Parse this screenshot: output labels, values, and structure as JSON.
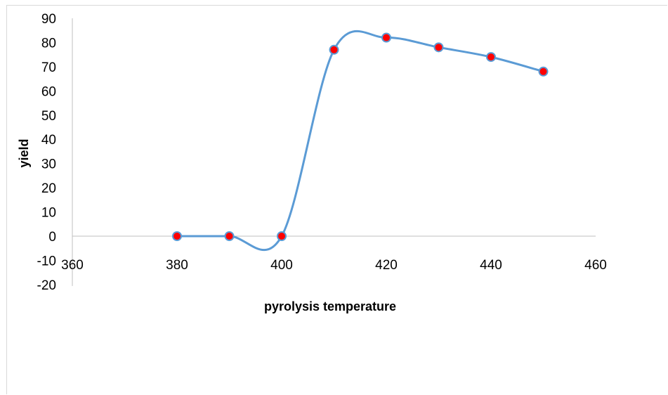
{
  "chart_data": {
    "type": "scatter",
    "title": "",
    "xlabel": "pyrolysis temperature",
    "ylabel": "yield",
    "xlim": [
      360,
      460
    ],
    "ylim": [
      -20,
      90
    ],
    "x_ticks": [
      360,
      380,
      400,
      420,
      440,
      460
    ],
    "y_ticks": [
      -20,
      -10,
      0,
      10,
      20,
      30,
      40,
      50,
      60,
      70,
      80,
      90
    ],
    "grid": false,
    "legend": "none",
    "smooth_line": true,
    "series": [
      {
        "x": [
          380,
          390,
          400,
          410,
          420,
          430,
          440,
          450
        ],
        "y": [
          0,
          0,
          0,
          77,
          82,
          78,
          74,
          68
        ],
        "line_color": "#5b9bd5",
        "marker_color": "#ff0000",
        "marker_edge": "#5b9bd5"
      }
    ]
  }
}
